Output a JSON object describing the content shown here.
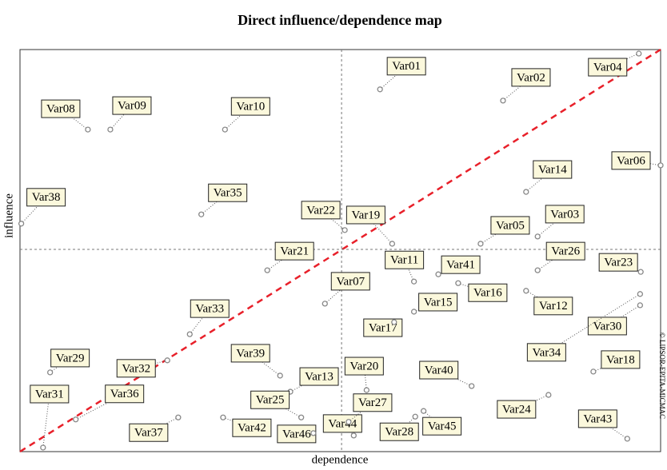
{
  "chart_data": {
    "type": "scatter",
    "title": "Direct influence/dependence map",
    "x_label": "dependence",
    "y_label": "influence",
    "watermark": "© LIPSOR-EPITA-MICMAC",
    "xlim": [
      0,
      100
    ],
    "ylim": [
      0,
      100
    ],
    "mean_x": 50.2,
    "mean_y": 50.3,
    "labels": [
      "Var01",
      "Var02",
      "Var04",
      "Var06",
      "Var08",
      "Var09",
      "Var10",
      "Var14",
      "Var38",
      "Var35",
      "Var22",
      "Var19",
      "Var05",
      "Var03",
      "Var21",
      "Var11",
      "Var41",
      "Var16",
      "Var26",
      "Var23",
      "Var07",
      "Var15",
      "Var12",
      "Var33",
      "Var17",
      "Var30",
      "Var34",
      "Var18",
      "Var29",
      "Var32",
      "Var39",
      "Var13",
      "Var20",
      "Var40",
      "Var31",
      "Var36",
      "Var37",
      "Var42",
      "Var25",
      "Var46",
      "Var44",
      "Var27",
      "Var28",
      "Var45",
      "Var24",
      "Var43"
    ],
    "x": [
      56.2,
      75.4,
      96.6,
      100,
      10.6,
      14.1,
      32.0,
      79.0,
      0.2,
      28.3,
      50.7,
      58.1,
      71.9,
      80.8,
      38.6,
      61.5,
      65.3,
      68.4,
      80.8,
      96.9,
      47.6,
      61.5,
      79.0,
      26.5,
      58.4,
      96.8,
      96.8,
      89.5,
      4.7,
      23.0,
      40.6,
      42.2,
      54.1,
      70.5,
      3.6,
      8.7,
      24.7,
      31.7,
      43.9,
      45.8,
      52.1,
      51.3,
      61.7,
      63.0,
      82.5,
      94.8
    ],
    "values": [
      90.1,
      87.3,
      99.0,
      71.2,
      80.1,
      80.1,
      80.1,
      64.6,
      56.7,
      59.0,
      55.1,
      51.7,
      51.7,
      53.5,
      45.1,
      42.3,
      44.1,
      41.9,
      45.1,
      44.7,
      36.8,
      34.8,
      40.0,
      29.2,
      32.2,
      36.4,
      39.2,
      19.9,
      19.7,
      22.7,
      18.9,
      14.9,
      15.3,
      16.3,
      1.0,
      8.0,
      8.5,
      8.5,
      8.5,
      4.6,
      4.0,
      7.4,
      8.7,
      10.1,
      14.1,
      3.2
    ],
    "color": "#888888",
    "diagonal_color": "#e8202a"
  }
}
